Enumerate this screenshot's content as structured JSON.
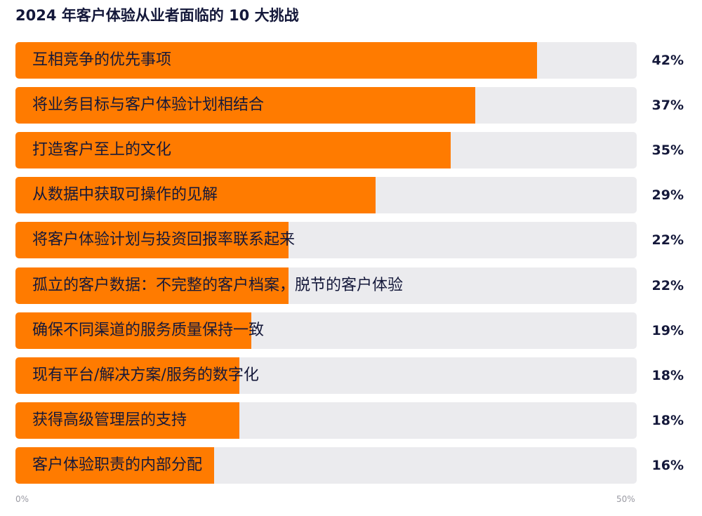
{
  "chart_data": {
    "type": "bar",
    "orientation": "horizontal",
    "title": "2024 年客户体验从业者面临的 10 大挑战",
    "categories": [
      "互相竞争的优先事项",
      "将业务目标与客户体验计划相结合",
      "打造客户至上的文化",
      "从数据中获取可操作的见解",
      "将客户体验计划与投资回报率联系起来",
      "孤立的客户数据：不完整的客户档案，脱节的客户体验",
      "确保不同渠道的服务质量保持一致",
      "现有平台/解决方案/服务的数字化",
      "获得高级管理层的支持",
      "客户体验职责的内部分配"
    ],
    "values": [
      42,
      37,
      35,
      29,
      22,
      22,
      19,
      18,
      18,
      16
    ],
    "value_labels": [
      "42%",
      "37%",
      "35%",
      "29%",
      "22%",
      "22%",
      "19%",
      "18%",
      "18%",
      "16%"
    ],
    "xlim": [
      0,
      50
    ],
    "tick_labels": [
      "0%",
      "50%"
    ],
    "grid": false,
    "legend": "none",
    "colors": {
      "bar": "#ff7b00",
      "track": "#ebebee",
      "text": "#14183a",
      "axis": "#9a9aa3"
    }
  }
}
